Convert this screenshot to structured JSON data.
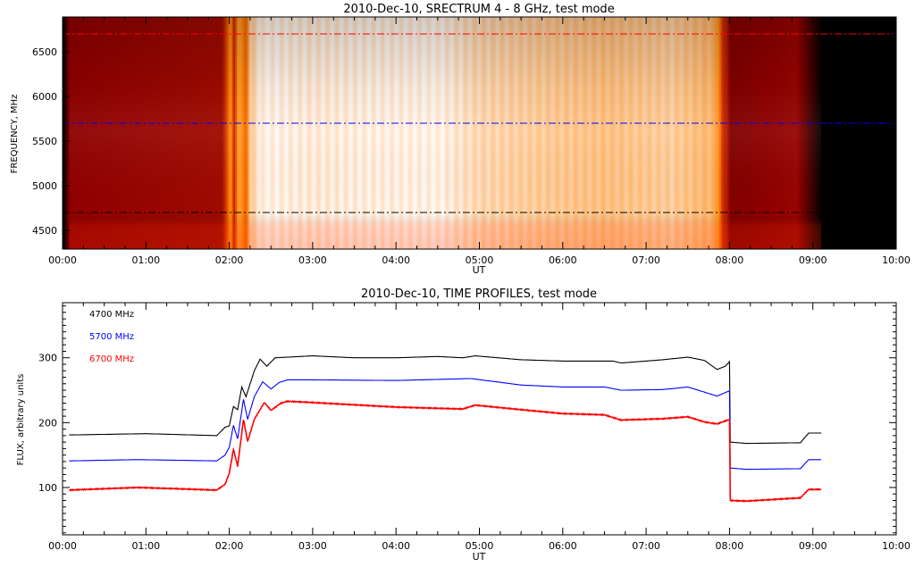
{
  "chart_data": [
    {
      "type": "heatmap",
      "title": "2010-Dec-10,  SRECTRUM 4 - 8 GHz,  test mode",
      "xlabel": "UT",
      "ylabel": "FREQUENCY, MHz",
      "xlim_hours": [
        0,
        10
      ],
      "ylim": [
        4290,
        6890
      ],
      "xticks": [
        "00:00",
        "01:00",
        "02:00",
        "03:00",
        "04:00",
        "05:00",
        "06:00",
        "07:00",
        "08:00",
        "09:00",
        "10:00"
      ],
      "yticks": [
        4500,
        5000,
        5500,
        6000,
        6500
      ],
      "ytick_labels": [
        "4500",
        "5000",
        "5500",
        "6000",
        "6500"
      ],
      "intensity_profile_hours": [
        [
          0,
          0
        ],
        [
          0.08,
          0.3
        ],
        [
          1.9,
          0.34
        ],
        [
          2.0,
          0.62
        ],
        [
          2.05,
          0.45
        ],
        [
          2.1,
          0.66
        ],
        [
          2.2,
          0.58
        ],
        [
          2.25,
          0.85
        ],
        [
          2.4,
          0.94
        ],
        [
          3.0,
          0.92
        ],
        [
          4.5,
          0.94
        ],
        [
          5.0,
          0.87
        ],
        [
          6.5,
          0.8
        ],
        [
          7.3,
          0.84
        ],
        [
          7.8,
          0.76
        ],
        [
          8.0,
          0.27
        ],
        [
          8.8,
          0.32
        ],
        [
          9.1,
          0
        ]
      ],
      "cut_lines": [
        {
          "freq": 6700,
          "color": "#ff0000"
        },
        {
          "freq": 5700,
          "color": "#0000ff"
        },
        {
          "freq": 4700,
          "color": "#000000"
        }
      ]
    },
    {
      "type": "line",
      "title": "2010-Dec-10,  TIME PROFILES,  test mode",
      "xlabel": "UT",
      "ylabel": "FLUX, arbitrary units",
      "xlim_hours": [
        0,
        10
      ],
      "ylim": [
        27,
        385
      ],
      "xticks": [
        "00:00",
        "01:00",
        "02:00",
        "03:00",
        "04:00",
        "05:00",
        "06:00",
        "07:00",
        "08:00",
        "09:00",
        "10:00"
      ],
      "yticks": [
        100,
        200,
        300
      ],
      "ytick_labels": [
        "100",
        "200",
        "300"
      ],
      "legend_position": "top-left",
      "series": [
        {
          "name": "4700 MHz",
          "color": "#000000",
          "points": [
            [
              0.08,
              181
            ],
            [
              1.0,
              183
            ],
            [
              1.85,
              180
            ],
            [
              1.95,
              193
            ],
            [
              2.0,
              195
            ],
            [
              2.05,
              225
            ],
            [
              2.1,
              220
            ],
            [
              2.15,
              255
            ],
            [
              2.2,
              240
            ],
            [
              2.3,
              280
            ],
            [
              2.37,
              298
            ],
            [
              2.45,
              287
            ],
            [
              2.55,
              300
            ],
            [
              2.7,
              301
            ],
            [
              3.0,
              303
            ],
            [
              3.5,
              300
            ],
            [
              4.0,
              300
            ],
            [
              4.5,
              302
            ],
            [
              4.8,
              300
            ],
            [
              4.95,
              303
            ],
            [
              5.5,
              297
            ],
            [
              6.0,
              295
            ],
            [
              6.6,
              295
            ],
            [
              6.7,
              292
            ],
            [
              7.2,
              297
            ],
            [
              7.5,
              301
            ],
            [
              7.7,
              296
            ],
            [
              7.85,
              282
            ],
            [
              7.95,
              287
            ],
            [
              8.0,
              294
            ],
            [
              8.01,
              170
            ],
            [
              8.2,
              168
            ],
            [
              8.85,
              169
            ],
            [
              8.95,
              184
            ],
            [
              9.1,
              184
            ]
          ]
        },
        {
          "name": "5700 MHz",
          "color": "#0000ff",
          "points": [
            [
              0.08,
              141
            ],
            [
              0.9,
              143
            ],
            [
              1.85,
              141
            ],
            [
              1.95,
              150
            ],
            [
              2.0,
              162
            ],
            [
              2.05,
              196
            ],
            [
              2.1,
              175
            ],
            [
              2.17,
              236
            ],
            [
              2.22,
              205
            ],
            [
              2.3,
              240
            ],
            [
              2.4,
              263
            ],
            [
              2.5,
              252
            ],
            [
              2.6,
              262
            ],
            [
              2.7,
              266
            ],
            [
              3.0,
              266
            ],
            [
              4.0,
              265
            ],
            [
              4.9,
              268
            ],
            [
              5.5,
              258
            ],
            [
              6.0,
              255
            ],
            [
              6.5,
              255
            ],
            [
              6.7,
              250
            ],
            [
              7.2,
              251
            ],
            [
              7.5,
              255
            ],
            [
              7.7,
              247
            ],
            [
              7.85,
              241
            ],
            [
              8.0,
              249
            ],
            [
              8.01,
              130
            ],
            [
              8.2,
              128
            ],
            [
              8.85,
              129
            ],
            [
              8.95,
              143
            ],
            [
              9.1,
              143
            ]
          ]
        },
        {
          "name": "6700 MHz",
          "color": "#ff0000",
          "points": [
            [
              0.08,
              96
            ],
            [
              0.9,
              100
            ],
            [
              1.85,
              96
            ],
            [
              1.95,
              105
            ],
            [
              2.0,
              122
            ],
            [
              2.05,
              159
            ],
            [
              2.1,
              133
            ],
            [
              2.17,
              205
            ],
            [
              2.22,
              171
            ],
            [
              2.3,
              205
            ],
            [
              2.42,
              231
            ],
            [
              2.5,
              219
            ],
            [
              2.62,
              230
            ],
            [
              2.7,
              233
            ],
            [
              3.0,
              231
            ],
            [
              4.0,
              224
            ],
            [
              4.8,
              221
            ],
            [
              4.95,
              227
            ],
            [
              5.5,
              220
            ],
            [
              6.0,
              214
            ],
            [
              6.5,
              212
            ],
            [
              6.7,
              204
            ],
            [
              7.2,
              206
            ],
            [
              7.5,
              209
            ],
            [
              7.7,
              201
            ],
            [
              7.85,
              198
            ],
            [
              8.0,
              205
            ],
            [
              8.01,
              80
            ],
            [
              8.2,
              79
            ],
            [
              8.85,
              84
            ],
            [
              8.95,
              97
            ],
            [
              9.1,
              97
            ]
          ]
        }
      ]
    }
  ]
}
